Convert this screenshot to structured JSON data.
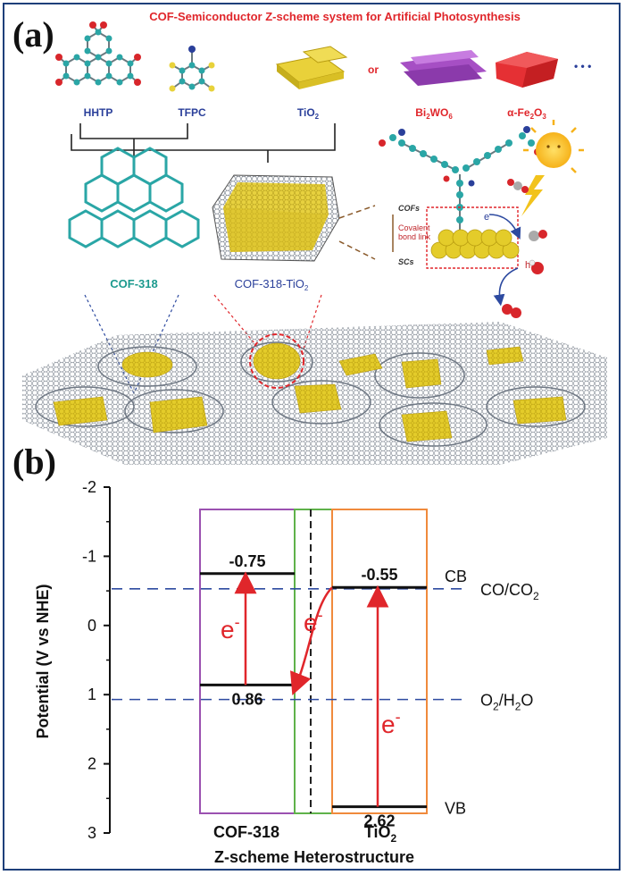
{
  "panel_a": {
    "letter": "(a)",
    "title": "COF-Semiconductor  Z-scheme system for Artificial Photosynthesis",
    "molecules": {
      "hhtp": "HHTP",
      "tfpc": "TFPC",
      "tio2": "TiO",
      "tio2_sub": "2",
      "or": "or",
      "bi2wo6": "Bi",
      "bi2wo6_sub": "2",
      "bi2wo6_rest": "WO",
      "bi2wo6_sub2": "6",
      "fe2o3": "α-Fe",
      "fe2o3_sub": "2",
      "fe2o3_rest": "O",
      "fe2o3_sub2": "3",
      "dots": "• • •"
    },
    "labels": {
      "cof318": "COF-318",
      "cof318tio2": "COF-318-TiO",
      "cof318tio2_sub": "2",
      "cofs": "COFs",
      "covalent": "Covalent",
      "bond_link": "bond link",
      "scs": "SCs",
      "e_minus": "e",
      "h_plus": "h"
    }
  },
  "panel_b": {
    "letter": "(b)",
    "colors": {
      "cof_box": "#9b51b0",
      "tio2_box": "#f08a3c",
      "green": "#5fb24a",
      "arrow": "#e0262b",
      "dashed": "#2d4aa0"
    },
    "chart_data": {
      "type": "band-diagram",
      "ylabel": "Potential (V vs NHE)",
      "xlabel": "Z-scheme Heterostructure",
      "ylim": [
        -2,
        3
      ],
      "yticks": [
        "-2",
        "-1",
        "0",
        "1",
        "2",
        "3"
      ],
      "materials": [
        {
          "name": "COF-318",
          "cb": -0.75,
          "vb": 0.86,
          "cb_label": "-0.75",
          "vb_label": "0.86"
        },
        {
          "name": "TiO",
          "name_sub": "2",
          "cb": -0.55,
          "vb": 2.62,
          "cb_label": "-0.55",
          "vb_label": "2.62"
        }
      ],
      "reference_lines": [
        {
          "label": "CO/CO",
          "sub": "2",
          "value": -0.53
        },
        {
          "label": "O",
          "sub": "2",
          "label_rest": "/H",
          "sub2": "2",
          "label_end": "O",
          "value": 1.07
        }
      ],
      "band_labels": {
        "cb": "CB",
        "vb": "VB"
      },
      "electron": "e",
      "electron_sup": "-"
    }
  }
}
